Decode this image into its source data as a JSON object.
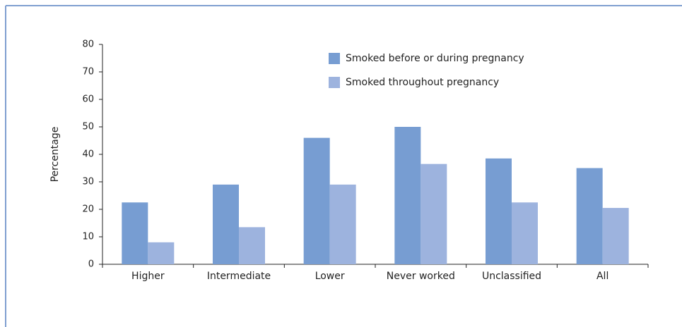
{
  "chart_data": {
    "type": "bar",
    "y_label": "Percentage",
    "categories": [
      "Higher",
      "Intermediate",
      "Lower",
      "Never worked",
      "Unclassified",
      "All"
    ],
    "series": [
      {
        "name": "Smoked before or during pregnancy",
        "color": "#779dd2",
        "values": [
          22.5,
          29,
          46,
          50,
          38.5,
          35
        ]
      },
      {
        "name": "Smoked throughout pregnancy",
        "color": "#9db3de",
        "values": [
          8,
          13.5,
          29,
          36.5,
          22.5,
          20.5
        ]
      }
    ],
    "ylim": [
      0,
      80
    ],
    "yticks": [
      0,
      10,
      20,
      30,
      40,
      50,
      60,
      70,
      80
    ],
    "grid": false,
    "legend": "top-right"
  }
}
